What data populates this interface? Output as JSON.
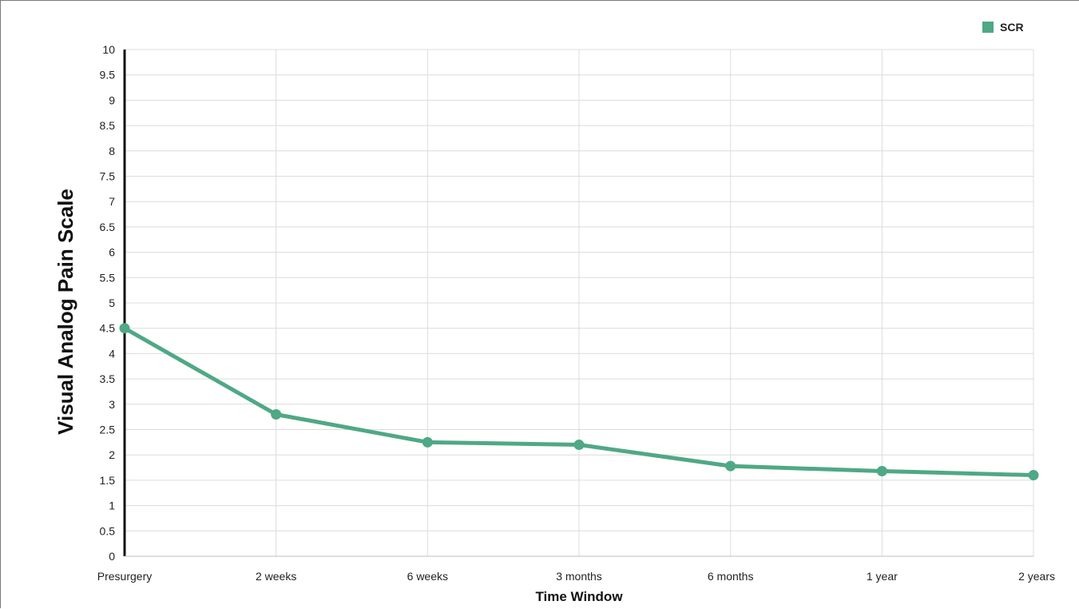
{
  "chart_data": {
    "type": "line",
    "categories": [
      "Presurgery",
      "2 weeks",
      "6 weeks",
      "3 months",
      "6 months",
      "1 year",
      "2 years"
    ],
    "series": [
      {
        "name": "SCR",
        "values": [
          4.5,
          2.8,
          2.25,
          2.2,
          1.78,
          1.68,
          1.6
        ],
        "color": "#4fa886"
      }
    ],
    "title": "",
    "xlabel": "Time Window",
    "ylabel": "Visual Analog Pain Scale",
    "ylim": [
      0,
      10
    ],
    "ytick_step": 0.5,
    "ytick_labels": [
      "0",
      "0.5",
      "1",
      "1.5",
      "2",
      "2.5",
      "3",
      "3.5",
      "4",
      "4.5",
      "5",
      "5.5",
      "6",
      "6.5",
      "7",
      "7.5",
      "8",
      "8.5",
      "9",
      "9.5",
      "10"
    ],
    "grid": true,
    "legend_position": "top-right",
    "gridline_color": "#dcdcdc",
    "axis_color": "#111111"
  }
}
